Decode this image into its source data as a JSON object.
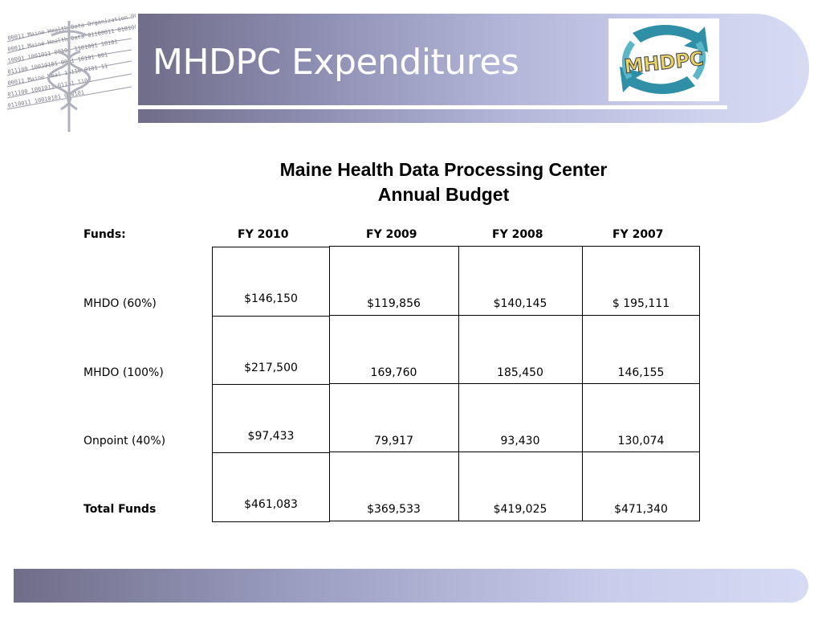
{
  "slide": {
    "title": "MHDPC Expenditures",
    "logo_text": "MHDPC",
    "seal_text": "Maine Health Data Organization"
  },
  "heading": {
    "line1": "Maine Health Data Processing Center",
    "line2": "Annual Budget"
  },
  "table": {
    "headers": [
      "Funds:",
      "FY 2010",
      "FY 2009",
      "FY 2008",
      "FY 2007"
    ],
    "rows": [
      {
        "label": "MHDO (60%)",
        "fy2010": "$146,150",
        "fy2009": "$119,856",
        "fy2008": "$140,145",
        "fy2007": "$ 195,111"
      },
      {
        "label": "MHDO (100%)",
        "fy2010": "$217,500",
        "fy2009": "169,760",
        "fy2008": "185,450",
        "fy2007": "146,155"
      },
      {
        "label": "Onpoint (40%)",
        "fy2010": "$97,433",
        "fy2009": "79,917",
        "fy2008": "93,430",
        "fy2007": "130,074"
      },
      {
        "label": "Total Funds",
        "fy2010": "$461,083",
        "fy2009": "$369,533",
        "fy2008": "$419,025",
        "fy2007": "$471,340"
      }
    ]
  },
  "colors": {
    "banner_dark": "#6f6d88",
    "banner_light": "#d7daf3",
    "logo_teal": "#2f8fa6",
    "logo_text": "#e8d36a"
  }
}
